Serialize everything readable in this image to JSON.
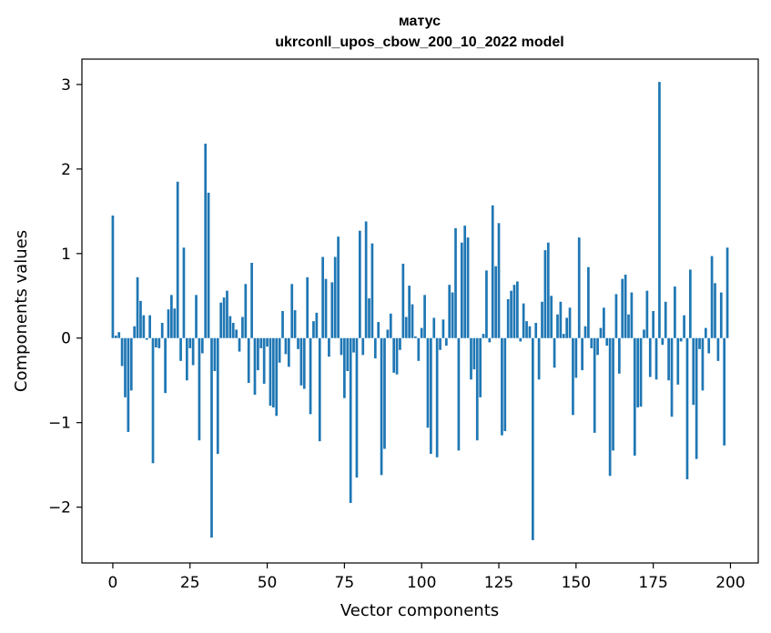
{
  "chart_data": {
    "type": "bar",
    "title_lines": [
      "матус",
      "ukrconll_upos_cbow_200_10_2022 model"
    ],
    "xlabel": "Vector components",
    "ylabel": "Components values",
    "xlim": [
      -10,
      209
    ],
    "ylim": [
      -2.66,
      3.3
    ],
    "xticks": [
      0,
      25,
      50,
      75,
      100,
      125,
      150,
      175,
      200
    ],
    "yticks": [
      -2,
      -1,
      0,
      1,
      2,
      3
    ],
    "ytick_labels": [
      "−2",
      "−1",
      "0",
      "1",
      "2",
      "3"
    ],
    "bar_color": "#1f77b4",
    "grid": false,
    "x": [
      0,
      1,
      2,
      3,
      4,
      5,
      6,
      7,
      8,
      9,
      10,
      11,
      12,
      13,
      14,
      15,
      16,
      17,
      18,
      19,
      20,
      21,
      22,
      23,
      24,
      25,
      26,
      27,
      28,
      29,
      30,
      31,
      32,
      33,
      34,
      35,
      36,
      37,
      38,
      39,
      40,
      41,
      42,
      43,
      44,
      45,
      46,
      47,
      48,
      49,
      50,
      51,
      52,
      53,
      54,
      55,
      56,
      57,
      58,
      59,
      60,
      61,
      62,
      63,
      64,
      65,
      66,
      67,
      68,
      69,
      70,
      71,
      72,
      73,
      74,
      75,
      76,
      77,
      78,
      79,
      80,
      81,
      82,
      83,
      84,
      85,
      86,
      87,
      88,
      89,
      90,
      91,
      92,
      93,
      94,
      95,
      96,
      97,
      98,
      99,
      100,
      101,
      102,
      103,
      104,
      105,
      106,
      107,
      108,
      109,
      110,
      111,
      112,
      113,
      114,
      115,
      116,
      117,
      118,
      119,
      120,
      121,
      122,
      123,
      124,
      125,
      126,
      127,
      128,
      129,
      130,
      131,
      132,
      133,
      134,
      135,
      136,
      137,
      138,
      139,
      140,
      141,
      142,
      143,
      144,
      145,
      146,
      147,
      148,
      149,
      150,
      151,
      152,
      153,
      154,
      155,
      156,
      157,
      158,
      159,
      160,
      161,
      162,
      163,
      164,
      165,
      166,
      167,
      168,
      169,
      170,
      171,
      172,
      173,
      174,
      175,
      176,
      177,
      178,
      179,
      180,
      181,
      182,
      183,
      184,
      185,
      186,
      187,
      188,
      189,
      190,
      191,
      192,
      193,
      194,
      195,
      196,
      197,
      198,
      199
    ],
    "values": [
      1.45,
      0.03,
      0.07,
      -0.33,
      -0.7,
      -1.11,
      -0.62,
      0.14,
      0.72,
      0.44,
      0.27,
      -0.02,
      0.27,
      -1.48,
      -0.11,
      -0.12,
      0.18,
      -0.65,
      0.34,
      0.51,
      0.35,
      1.85,
      -0.27,
      1.07,
      -0.5,
      -0.12,
      -0.32,
      0.51,
      -1.21,
      -0.18,
      2.3,
      1.72,
      -2.36,
      -0.39,
      -1.37,
      0.42,
      0.48,
      0.56,
      0.26,
      0.18,
      0.1,
      -0.16,
      0.25,
      0.64,
      -0.53,
      0.89,
      -0.67,
      -0.38,
      -0.12,
      -0.54,
      -0.1,
      -0.8,
      -0.82,
      -0.92,
      -0.29,
      0.32,
      -0.19,
      -0.34,
      0.64,
      0.33,
      -0.13,
      -0.56,
      -0.6,
      0.72,
      -0.9,
      0.2,
      0.3,
      -1.22,
      0.96,
      0.7,
      -0.22,
      0.66,
      0.96,
      1.2,
      -0.2,
      -0.71,
      -0.39,
      -1.95,
      -0.17,
      -1.65,
      1.27,
      -0.2,
      1.38,
      0.47,
      1.12,
      -0.24,
      0.19,
      -1.62,
      -1.31,
      0.1,
      0.29,
      -0.41,
      -0.43,
      -0.14,
      0.88,
      0.25,
      0.62,
      0.4,
      0.02,
      -0.27,
      0.12,
      0.51,
      -1.06,
      -1.37,
      0.24,
      -1.41,
      -0.14,
      0.22,
      -0.09,
      0.63,
      0.54,
      1.3,
      -1.33,
      1.13,
      1.33,
      1.19,
      -0.49,
      -0.37,
      -1.21,
      -0.7,
      0.05,
      0.8,
      -0.05,
      1.57,
      0.85,
      1.36,
      -1.15,
      -1.1,
      0.46,
      0.56,
      0.63,
      0.67,
      -0.04,
      0.41,
      0.2,
      0.14,
      -2.39,
      0.18,
      -0.49,
      0.43,
      1.04,
      1.13,
      0.5,
      -0.35,
      0.28,
      0.43,
      0.05,
      0.24,
      0.36,
      -0.91,
      -0.47,
      1.19,
      -0.38,
      0.14,
      0.84,
      -0.12,
      -1.12,
      -0.2,
      0.12,
      0.36,
      -0.09,
      -1.63,
      -1.33,
      0.52,
      -0.42,
      0.7,
      0.75,
      0.28,
      0.54,
      -1.39,
      -0.82,
      -0.81,
      0.1,
      0.56,
      -0.46,
      0.32,
      -0.49,
      3.03,
      -0.08,
      0.43,
      -0.5,
      -0.93,
      0.61,
      -0.55,
      -0.04,
      0.27,
      -1.67,
      0.81,
      -0.79,
      -1.43,
      -0.13,
      -0.62,
      0.12,
      -0.18,
      0.97,
      0.65,
      -0.27,
      0.54,
      -1.27,
      1.07
    ]
  }
}
